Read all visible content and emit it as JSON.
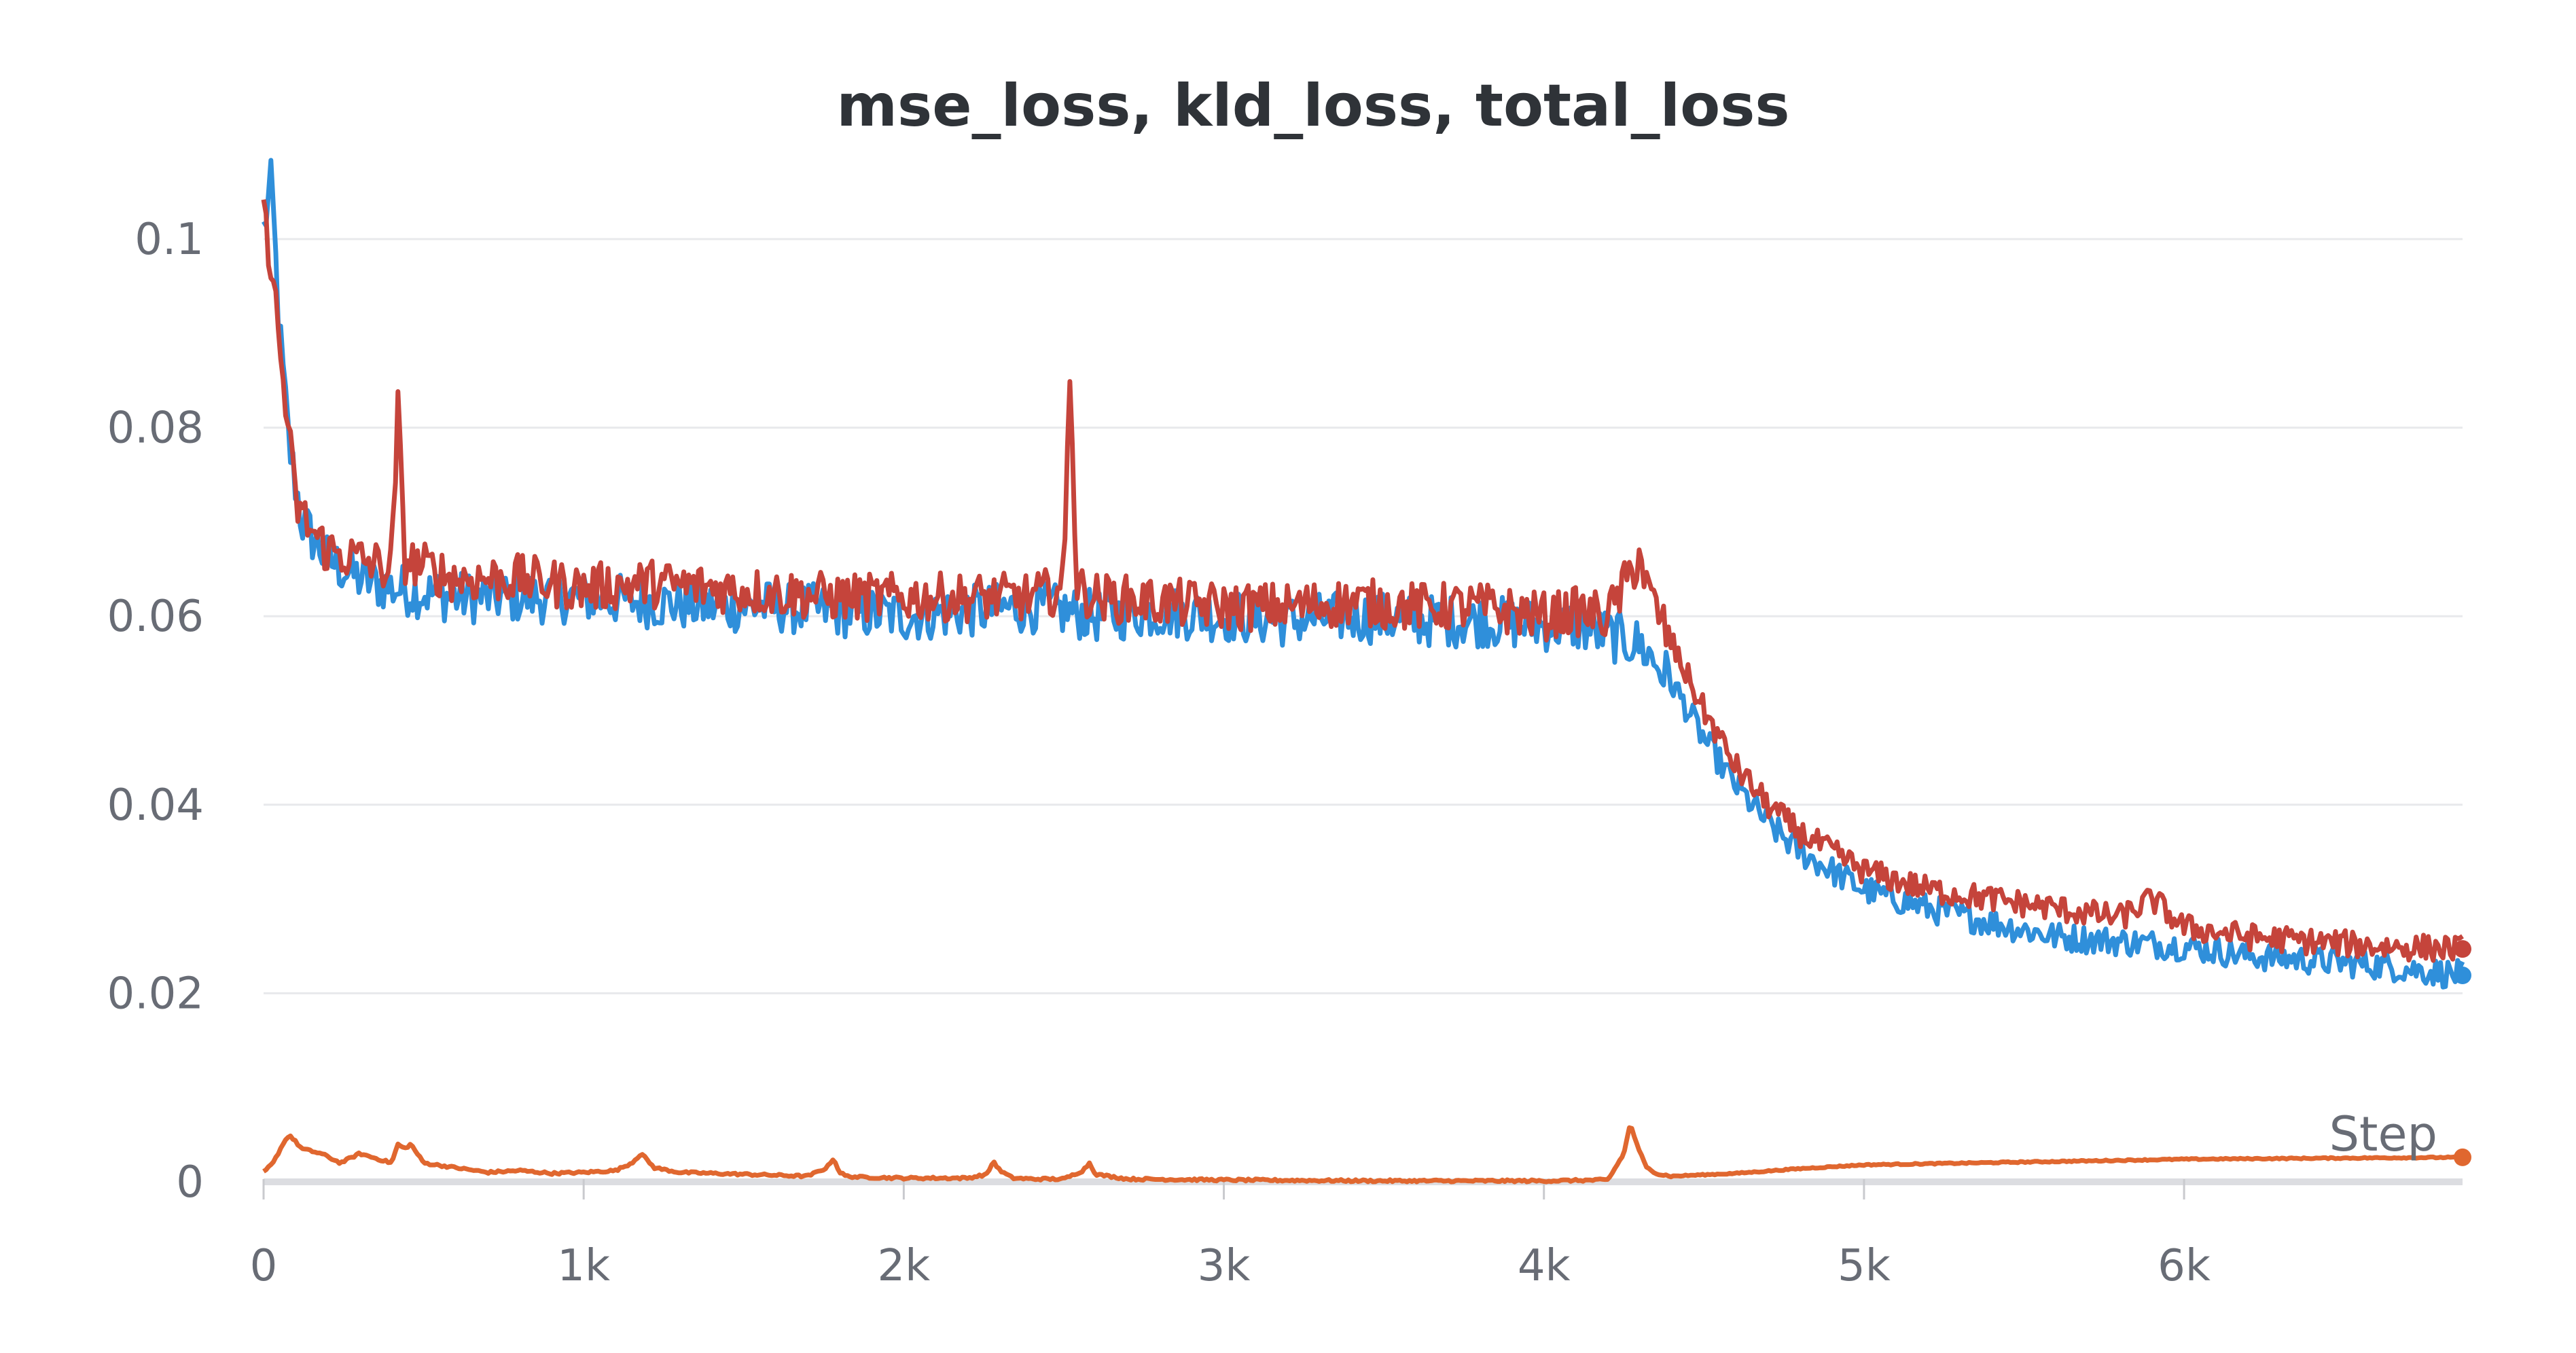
{
  "chart_data": {
    "type": "line",
    "title": "mse_loss, kld_loss, total_loss",
    "xlabel": "Step",
    "ylabel": "",
    "xlim": [
      0,
      6870
    ],
    "ylim": [
      0,
      0.1
    ],
    "x_ticks": [
      0,
      1000,
      2000,
      3000,
      4000,
      5000,
      6000
    ],
    "x_tick_labels": [
      "0",
      "1k",
      "2k",
      "3k",
      "4k",
      "5k",
      "6k"
    ],
    "y_ticks": [
      0,
      0.02,
      0.04,
      0.06,
      0.08,
      0.1
    ],
    "y_tick_labels": [
      "0",
      "0.02",
      "0.04",
      "0.06",
      "0.08",
      "0.1"
    ],
    "grid": true,
    "legend": "none",
    "series": [
      {
        "color": "#2f8fda",
        "x": [
          0,
          25,
          50,
          80,
          120,
          200,
          300,
          400,
          600,
          800,
          1000,
          1200,
          1400,
          1600,
          1800,
          2000,
          2200,
          2400,
          2600,
          2800,
          3000,
          3200,
          3400,
          3600,
          3800,
          4000,
          4100,
          4200,
          4300,
          4400,
          4500,
          4600,
          4700,
          4800,
          4900,
          5000,
          5200,
          5400,
          5600,
          5800,
          6000,
          6200,
          6400,
          6600,
          6870
        ],
        "y": [
          0.101,
          0.106,
          0.09,
          0.078,
          0.07,
          0.066,
          0.064,
          0.063,
          0.062,
          0.062,
          0.062,
          0.0615,
          0.061,
          0.061,
          0.0605,
          0.06,
          0.0605,
          0.061,
          0.06,
          0.0605,
          0.06,
          0.0595,
          0.06,
          0.0595,
          0.0595,
          0.059,
          0.059,
          0.058,
          0.057,
          0.053,
          0.047,
          0.042,
          0.038,
          0.035,
          0.033,
          0.031,
          0.029,
          0.0275,
          0.026,
          0.0255,
          0.025,
          0.024,
          0.0235,
          0.023,
          0.0219
        ]
      },
      {
        "color": "#e0672f",
        "x": [
          0,
          30,
          60,
          80,
          120,
          180,
          240,
          300,
          350,
          400,
          420,
          440,
          460,
          500,
          600,
          700,
          800,
          900,
          1000,
          1100,
          1150,
          1180,
          1220,
          1300,
          1500,
          1700,
          1760,
          1780,
          1800,
          1820,
          1860,
          2000,
          2200,
          2260,
          2280,
          2300,
          2340,
          2400,
          2500,
          2560,
          2580,
          2600,
          2700,
          3000,
          3500,
          4000,
          4200,
          4250,
          4270,
          4290,
          4320,
          4360,
          4400,
          4600,
          4800,
          5000,
          5500,
          6000,
          6400,
          6870
        ],
        "y": [
          0.001,
          0.002,
          0.004,
          0.005,
          0.0035,
          0.003,
          0.002,
          0.003,
          0.0025,
          0.002,
          0.004,
          0.0035,
          0.004,
          0.002,
          0.0015,
          0.001,
          0.0012,
          0.0009,
          0.001,
          0.0012,
          0.002,
          0.003,
          0.0015,
          0.001,
          0.0008,
          0.0006,
          0.0015,
          0.0025,
          0.001,
          0.0006,
          0.0005,
          0.0004,
          0.0004,
          0.0008,
          0.0022,
          0.0012,
          0.0004,
          0.0003,
          0.0003,
          0.0012,
          0.002,
          0.0008,
          0.0003,
          0.0002,
          0.0001,
          0.0001,
          0.0002,
          0.003,
          0.0062,
          0.004,
          0.0015,
          0.0008,
          0.0006,
          0.0009,
          0.0014,
          0.0018,
          0.0021,
          0.0024,
          0.0025,
          0.0026
        ]
      },
      {
        "color": "#c5443b",
        "x": [
          0,
          20,
          40,
          70,
          100,
          150,
          200,
          300,
          400,
          420,
          440,
          600,
          800,
          1000,
          1200,
          1400,
          1600,
          1800,
          2000,
          2200,
          2400,
          2500,
          2520,
          2540,
          2600,
          2800,
          3000,
          3200,
          3400,
          3600,
          3800,
          4000,
          4100,
          4200,
          4280,
          4300,
          4320,
          4400,
          4500,
          4600,
          4700,
          4800,
          4900,
          5000,
          5200,
          5400,
          5600,
          5800,
          5900,
          6000,
          6200,
          6400,
          6600,
          6870
        ],
        "y": [
          0.102,
          0.099,
          0.092,
          0.082,
          0.072,
          0.069,
          0.067,
          0.066,
          0.065,
          0.082,
          0.066,
          0.064,
          0.064,
          0.063,
          0.0635,
          0.063,
          0.0625,
          0.062,
          0.062,
          0.062,
          0.062,
          0.063,
          0.088,
          0.063,
          0.062,
          0.0615,
          0.061,
          0.061,
          0.0615,
          0.061,
          0.061,
          0.06,
          0.0605,
          0.06,
          0.065,
          0.067,
          0.063,
          0.057,
          0.05,
          0.044,
          0.04,
          0.037,
          0.035,
          0.033,
          0.031,
          0.03,
          0.029,
          0.028,
          0.03,
          0.027,
          0.026,
          0.0255,
          0.025,
          0.0247
        ]
      }
    ]
  }
}
